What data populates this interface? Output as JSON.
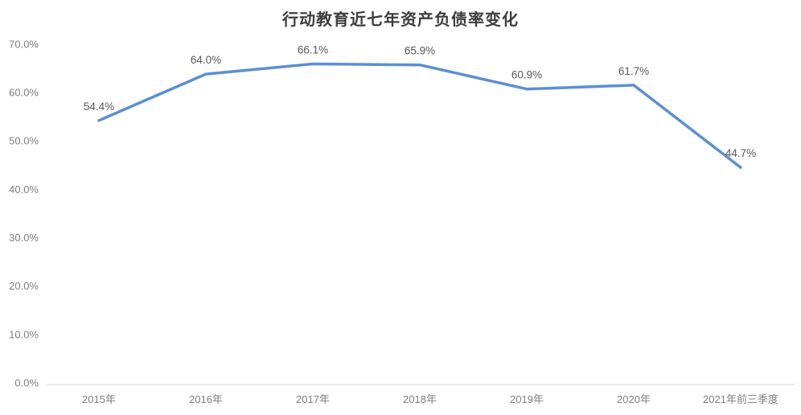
{
  "chart_data": {
    "type": "line",
    "title": "行动教育近七年资产负债率变化",
    "categories": [
      "2015年",
      "2016年",
      "2017年",
      "2018年",
      "2019年",
      "2020年",
      "2021年前三季度"
    ],
    "series": [
      {
        "name": "资产负债率",
        "values": [
          54.4,
          64.0,
          66.1,
          65.9,
          60.9,
          61.7,
          44.7
        ],
        "data_labels": [
          "54.4%",
          "64.0%",
          "66.1%",
          "65.9%",
          "60.9%",
          "61.7%",
          "44.7%"
        ]
      }
    ],
    "xlabel": "",
    "ylabel": "",
    "ylim": [
      0,
      70
    ],
    "y_tick_step": 10,
    "y_tick_labels": [
      "0.0%",
      "10.0%",
      "20.0%",
      "30.0%",
      "40.0%",
      "50.0%",
      "60.0%",
      "70.0%"
    ],
    "grid": false,
    "legend_position": "none",
    "colors": {
      "line": "#5B8FD4",
      "data_label": "#595959",
      "axis_tick_label": "#7F7F7F",
      "axis_line": "#D6D6D6",
      "title": "#3D3D3D",
      "background": "#FFFFFF"
    }
  }
}
